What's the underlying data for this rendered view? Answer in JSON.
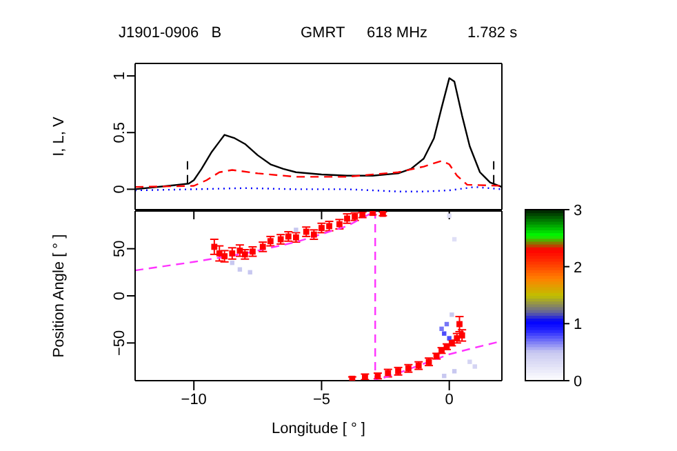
{
  "chart_data": [
    {
      "type": "line",
      "title": "J1901-0906   B",
      "annotations": [
        "GMRT",
        "618 MHz",
        "1.782 s"
      ],
      "ylabel": "I, L, V",
      "xlim": [
        -12.3,
        2.06
      ],
      "xticks": [
        {
          "value": -10,
          "label": null
        },
        {
          "value": -5,
          "label": null
        },
        {
          "value": 0,
          "label": null
        }
      ],
      "ylim": [
        -0.18,
        1.11
      ],
      "yticks": [
        0,
        0.5,
        1
      ],
      "tick_labels": "y",
      "grid": false,
      "legend": false,
      "marker": "none",
      "ref_lines": [
        {
          "axis": "x",
          "value": -10.25,
          "label": null,
          "color": "#000000",
          "line_style": "dashed"
        },
        {
          "axis": "x",
          "value": 1.74,
          "label": null,
          "color": "#000000",
          "line_style": "dashed"
        }
      ],
      "series": [
        {
          "color": "#000000",
          "line_style": "solid",
          "x": [
            -12.3,
            -11,
            -10.2,
            -10,
            -9.7,
            -9.3,
            -9,
            -8.8,
            -8.4,
            -8,
            -7.5,
            -7,
            -6.5,
            -6,
            -5,
            -4,
            -3,
            -2,
            -1.5,
            -1,
            -0.6,
            -0.3,
            0,
            0.2,
            0.5,
            0.8,
            1.2,
            1.6,
            2.06
          ],
          "values": [
            0.0,
            0.03,
            0.05,
            0.08,
            0.18,
            0.33,
            0.42,
            0.48,
            0.45,
            0.4,
            0.3,
            0.22,
            0.18,
            0.15,
            0.13,
            0.12,
            0.12,
            0.14,
            0.18,
            0.27,
            0.45,
            0.72,
            0.98,
            0.95,
            0.65,
            0.38,
            0.15,
            0.06,
            0.02
          ]
        },
        {
          "color": "#ff0000",
          "line_style": "dashed",
          "x": [
            -12.3,
            -10,
            -9.5,
            -9,
            -8.5,
            -7.5,
            -6,
            -4,
            -2,
            -1,
            -0.3,
            0,
            0.3,
            0.7,
            2.06
          ],
          "values": [
            0.02,
            0.03,
            0.08,
            0.15,
            0.17,
            0.14,
            0.11,
            0.11,
            0.15,
            0.2,
            0.25,
            0.22,
            0.12,
            0.04,
            0.03
          ]
        },
        {
          "color": "#0000ff",
          "line_style": "dotted",
          "x": [
            -12.3,
            -10,
            -8,
            -6,
            -4,
            -2,
            -1,
            0,
            1,
            2.06
          ],
          "values": [
            -0.01,
            0.0,
            0.01,
            0.0,
            0.0,
            -0.02,
            -0.02,
            -0.01,
            0.02,
            0.0
          ]
        }
      ]
    },
    {
      "type": "scatter",
      "xlabel": "Longitude [ ° ]",
      "ylabel": "Position Angle [ ° ]",
      "xlim": [
        -12.3,
        2.06
      ],
      "xticks": [
        -10,
        -5,
        0
      ],
      "ylim": [
        -90,
        90
      ],
      "yticks": [
        -50,
        0,
        50
      ],
      "grid": false,
      "legend": false,
      "marker": "square",
      "clim": [
        0,
        3
      ],
      "cticks": [
        0,
        1,
        2,
        3
      ],
      "series": [
        {
          "type": "scatter",
          "x": [
            -8.5,
            -8.2,
            -7.8,
            -6,
            -0.3,
            -0.2,
            -0.1,
            0,
            0.1,
            0.2,
            -0.2,
            0.8,
            1,
            0,
            0.2
          ],
          "values": [
            35,
            28,
            25,
            70,
            -35,
            -40,
            -30,
            -45,
            -20,
            -80,
            -85,
            -70,
            -75,
            85,
            60
          ],
          "colors": [
            "#c8c8f0",
            "#c8c8f0",
            "#c8c8f0",
            "#c8c8f0",
            "#7676f7",
            "#4c4cfb",
            "#7676f7",
            "#4c4cfb",
            "#c8c8f0",
            "#c8c8f0",
            "#c8c8f0",
            "#d4d4f3",
            "#d4d4f3",
            "#dfdff6",
            "#dfdff6"
          ]
        },
        {
          "type": "scatter",
          "color": "#ff0000",
          "x": [
            -9.2,
            -9,
            -8.8,
            -8.5,
            -8.2,
            -8,
            -7.7,
            -7.3,
            -7,
            -6.6,
            -6.3,
            -6,
            -5.6,
            -5.3,
            -5,
            -4.7,
            -4.3,
            -4,
            -3.7,
            -3.4,
            -3,
            -2.6,
            -3.8,
            -3.3,
            -2.8,
            -2.4,
            -2,
            -1.6,
            -1.2,
            -0.8,
            -0.5,
            -0.3,
            -0.1,
            0.1,
            0.3,
            0.4,
            0.5
          ],
          "values": [
            52,
            45,
            42,
            45,
            48,
            44,
            47,
            52,
            58,
            60,
            63,
            62,
            68,
            65,
            72,
            74,
            76,
            82,
            84,
            86,
            88,
            87,
            -88,
            -86,
            -85,
            -82,
            -80,
            -77,
            -74,
            -70,
            -64,
            -58,
            -54,
            -50,
            -45,
            -30,
            -42
          ],
          "errors": [
            8,
            8,
            6,
            6,
            6,
            5,
            5,
            5,
            5,
            5,
            5,
            5,
            5,
            5,
            5,
            5,
            5,
            5,
            4,
            3,
            2,
            2,
            2,
            3,
            3,
            4,
            4,
            4,
            4,
            4,
            3,
            3,
            3,
            3,
            5,
            8,
            6
          ]
        },
        {
          "type": "line",
          "color": "#ff33ff",
          "line_style": "dashed",
          "marker": "none",
          "x": [
            -12.3,
            -10,
            -8,
            -6,
            -4,
            -2.9,
            -2.9,
            -2,
            -1,
            0,
            1,
            2.06
          ],
          "values": [
            27,
            36,
            45,
            57,
            74,
            90,
            -90,
            -82,
            -72,
            -62,
            -55,
            -48
          ]
        }
      ]
    }
  ]
}
